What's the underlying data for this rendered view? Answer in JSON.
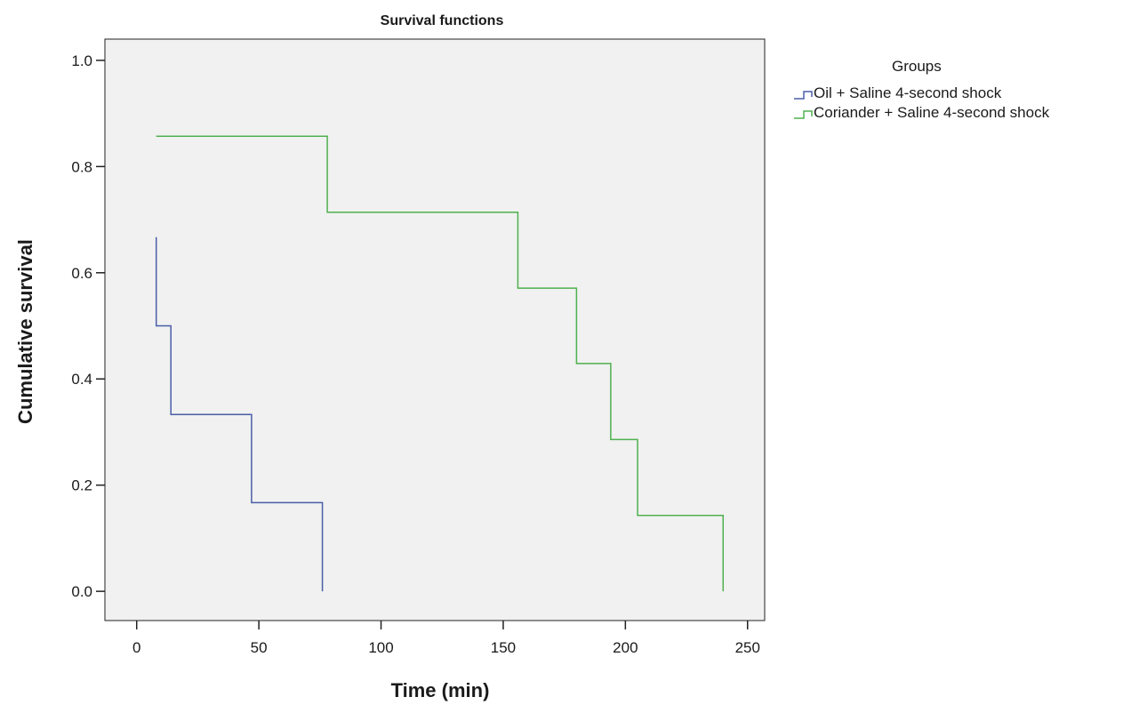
{
  "chart_data": {
    "type": "line",
    "step": true,
    "title": "Survival functions",
    "xlabel": "Time (min)",
    "ylabel": "Cumulative survival",
    "xlim": [
      -13,
      257
    ],
    "ylim": [
      -0.055,
      1.04
    ],
    "xticks": [
      0,
      50,
      100,
      150,
      200,
      250
    ],
    "yticks": [
      0.0,
      0.2,
      0.4,
      0.6,
      0.8,
      1.0
    ],
    "xtick_labels": [
      "0",
      "50",
      "100",
      "150",
      "200",
      "250"
    ],
    "ytick_labels": [
      "0.0",
      "0.2",
      "0.4",
      "0.6",
      "0.8",
      "1.0"
    ],
    "grid": false,
    "plot_background": "#f0f1f0",
    "legend": {
      "title": "Groups",
      "position": "right"
    },
    "series": [
      {
        "name": "Oil + Saline 4-second shock",
        "color": "#4a5ea8",
        "x": [
          8,
          8,
          14,
          47,
          76
        ],
        "y": [
          0.667,
          0.5,
          0.333,
          0.167,
          0.0
        ]
      },
      {
        "name": "Coriander + Saline 4-second shock",
        "color": "#4fb04f",
        "x": [
          8,
          78,
          156,
          180,
          194,
          205,
          240
        ],
        "y": [
          0.857,
          0.714,
          0.571,
          0.429,
          0.286,
          0.143,
          0.0
        ]
      }
    ]
  }
}
